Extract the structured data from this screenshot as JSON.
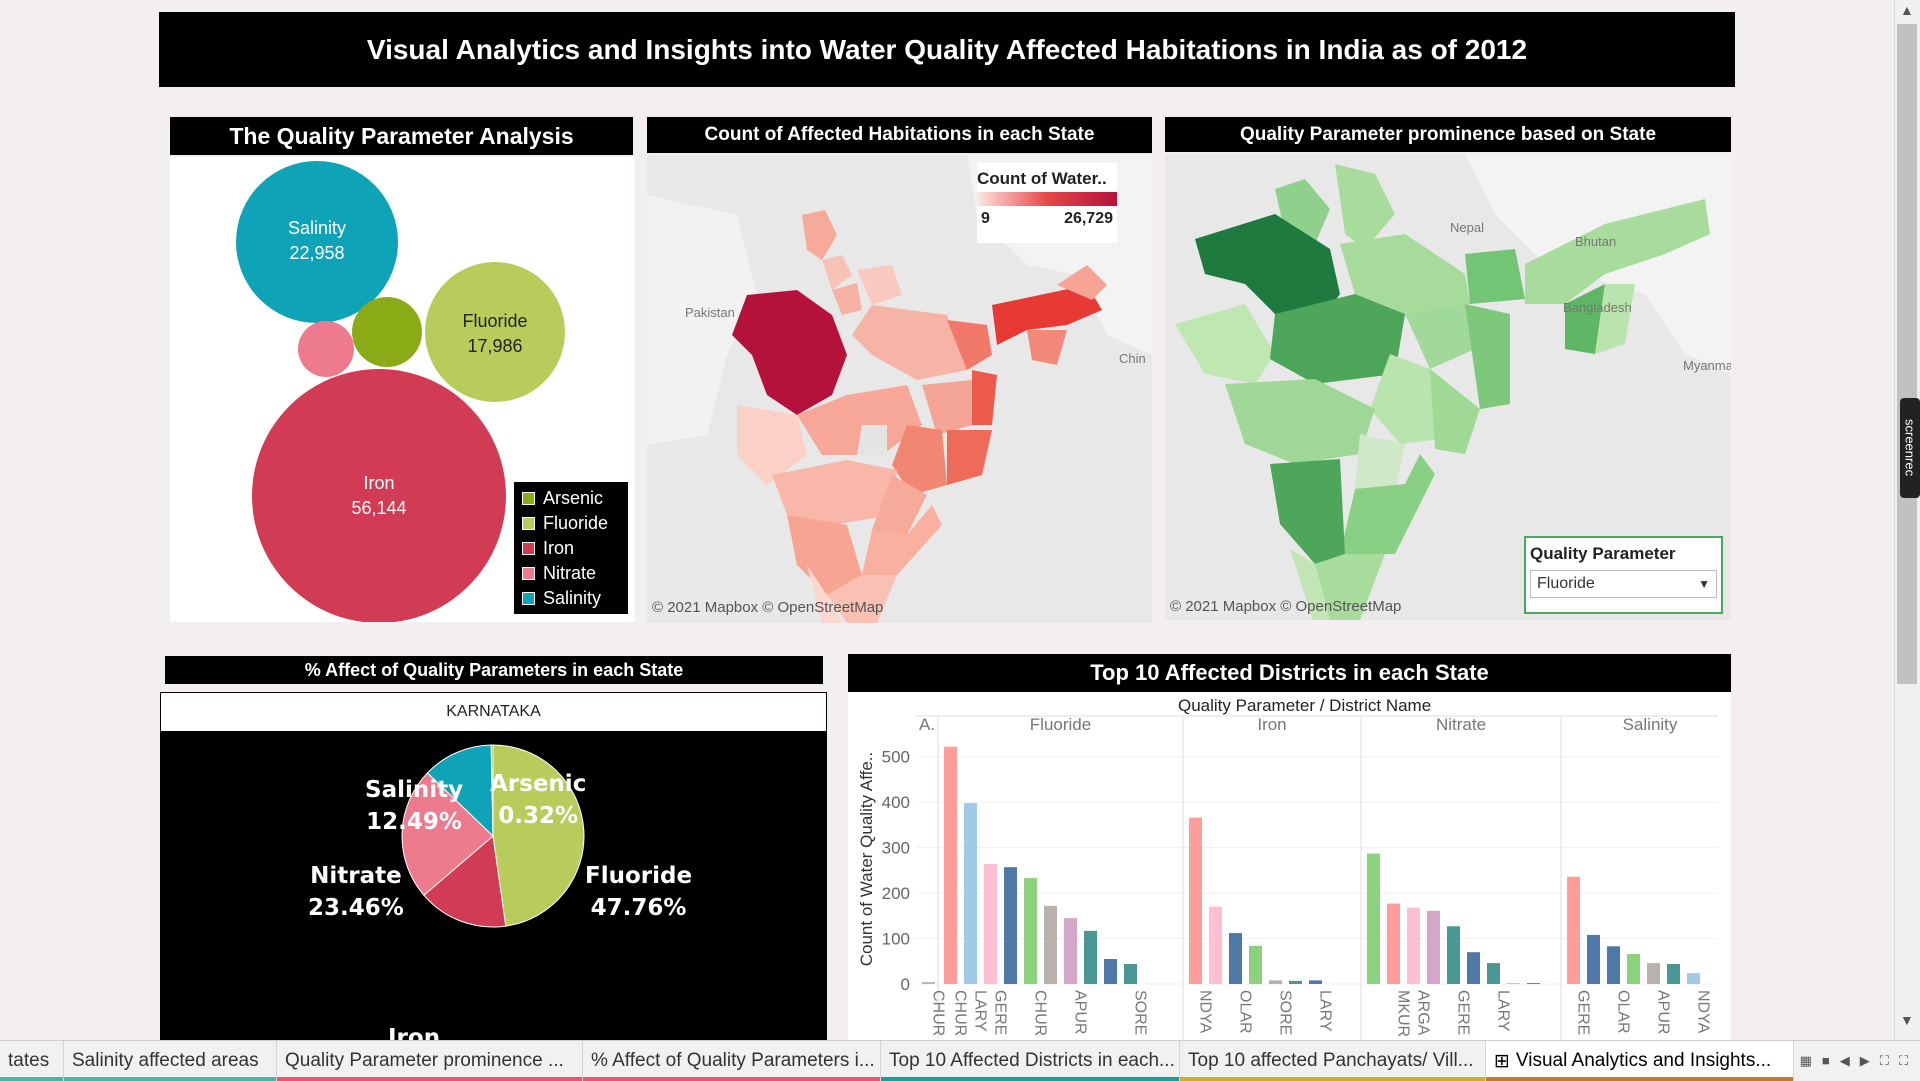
{
  "header": {
    "title": "Visual Analytics and Insights into Water Quality Affected Habitations in India as of 2012"
  },
  "bubble_panel": {
    "title": "The Quality Parameter Analysis",
    "bubbles": [
      {
        "name": "Salinity",
        "value": "22,958",
        "color": "#0ea3b6"
      },
      {
        "name": "Fluoride",
        "value": "17,986",
        "color": "#b8cc5c"
      },
      {
        "name": "Iron",
        "value": "56,144",
        "color": "#d23b54"
      },
      {
        "name": "Arsenic",
        "value": "",
        "color": "#8aab16"
      },
      {
        "name": "Nitrate",
        "value": "",
        "color": "#ee7a8e"
      }
    ],
    "legend": [
      {
        "label": "Arsenic",
        "color": "#8aab16"
      },
      {
        "label": "Fluoride",
        "color": "#b8cc5c"
      },
      {
        "label": "Iron",
        "color": "#d23b54"
      },
      {
        "label": "Nitrate",
        "color": "#ee7a8e"
      },
      {
        "label": "Salinity",
        "color": "#0ea3b6"
      }
    ]
  },
  "count_map": {
    "title": "Count of Affected Habitations in each State",
    "legend_title": "Count of Water..",
    "legend_min": "9",
    "legend_max": "26,729",
    "labels": {
      "pakistan": "Pakistan",
      "china": "Chin"
    },
    "attribution": "© 2021 Mapbox © OpenStreetMap"
  },
  "param_map": {
    "title": "Quality Parameter prominence based on State",
    "labels": {
      "nepal": "Nepal",
      "bhutan": "Bhutan",
      "bangladesh": "Bangladesh",
      "myanmar": "Myanma"
    },
    "attribution": "© 2021 Mapbox © OpenStreetMap",
    "filter_label": "Quality Parameter",
    "filter_value": "Fluoride"
  },
  "pie_panel": {
    "title": "% Affect of Quality Parameters in each State",
    "state": "KARNATAKA",
    "slices": [
      {
        "name": "Fluoride",
        "pct": 47.76,
        "label": "47.76%",
        "color": "#b8cc5c"
      },
      {
        "name": "Iron",
        "pct": 15.97,
        "label": "",
        "color": "#d23b54"
      },
      {
        "name": "Nitrate",
        "pct": 23.46,
        "label": "23.46%",
        "color": "#ee7a8e"
      },
      {
        "name": "Salinity",
        "pct": 12.49,
        "label": "12.49%",
        "color": "#0ea3b6"
      },
      {
        "name": "Arsenic",
        "pct": 0.32,
        "label": "0.32%",
        "color": "#8aab16"
      }
    ],
    "iron_label": "Iron"
  },
  "bar_panel": {
    "title": "Top 10 Affected Districts in each State",
    "header": "Quality Parameter / District Name",
    "ylabel": "Count of Water Quality Affe..",
    "yticks": [
      "500",
      "400",
      "300",
      "200",
      "100",
      "0"
    ]
  },
  "chart_data": {
    "type": "bar",
    "title": "Top 10 Affected Districts in each State",
    "ylabel": "Count of Water Quality Affe..",
    "ylim": [
      0,
      550
    ],
    "groups": [
      {
        "name": "A.",
        "values": [
          4
        ],
        "labels": [
          "CHUR"
        ],
        "colors": [
          "#bab0ac"
        ]
      },
      {
        "name": "Fluoride",
        "values": [
          522,
          398,
          264,
          257,
          233,
          172,
          145,
          117,
          55,
          44
        ],
        "labels": [
          "CHUR",
          "LARY",
          "GERE",
          "",
          "CHUR",
          "",
          "APUR",
          "",
          "",
          "SORE"
        ],
        "colors": [
          "#ff9d9a",
          "#a0cbe8",
          "#ffbfd2",
          "#4e79a7",
          "#8cd17d",
          "#bab0ac",
          "#d4a6c8",
          "#499894",
          "#4e79a7",
          "#499894"
        ]
      },
      {
        "name": "Iron",
        "values": [
          366,
          170,
          112,
          84,
          8,
          7,
          8
        ],
        "labels": [
          "NDYA",
          "",
          "OLAR",
          "",
          "SORE",
          "",
          "LARY"
        ],
        "colors": [
          "#ff9d9a",
          "#ffbfd2",
          "#4e79a7",
          "#8cd17d",
          "#bab0ac",
          "#499894",
          "#4e79a7"
        ]
      },
      {
        "name": "Nitrate",
        "values": [
          287,
          177,
          168,
          161,
          127,
          70,
          46,
          2,
          2
        ],
        "labels": [
          "",
          "MKUR",
          "ARGA",
          "",
          "GERE",
          "",
          "LARY",
          "",
          ""
        ],
        "colors": [
          "#8cd17d",
          "#ff9d9a",
          "#ffbfd2",
          "#d4a6c8",
          "#499894",
          "#4e79a7",
          "#499894",
          "#a0cbe8",
          "#4e79a7"
        ]
      },
      {
        "name": "Salinity",
        "values": [
          236,
          108,
          83,
          66,
          46,
          44,
          24
        ],
        "labels": [
          "GERE",
          "",
          "OLAR",
          "",
          "APUR",
          "",
          "NDYA"
        ],
        "colors": [
          "#ff9d9a",
          "#4e79a7",
          "#4e79a7",
          "#8cd17d",
          "#bab0ac",
          "#499894",
          "#a0cbe8"
        ]
      }
    ]
  },
  "tabs": [
    {
      "label": "tates",
      "color": "#4fb3a9"
    },
    {
      "label": "Salinity affected areas",
      "color": "#4fb3a9"
    },
    {
      "label": "Quality Parameter prominence ...",
      "color": "#e9566d"
    },
    {
      "label": "% Affect of Quality Parameters i...",
      "color": "#e9566d"
    },
    {
      "label": "Top 10 Affected Districts in each...",
      "color": "#1d9c9a"
    },
    {
      "label": "Top 10 affected Panchayats/ Vill...",
      "color": "#c9b034"
    },
    {
      "label": "Visual Analytics and Insights...",
      "color": "#c07a35",
      "icon": "⊞"
    }
  ],
  "screenrec": "screenrec"
}
